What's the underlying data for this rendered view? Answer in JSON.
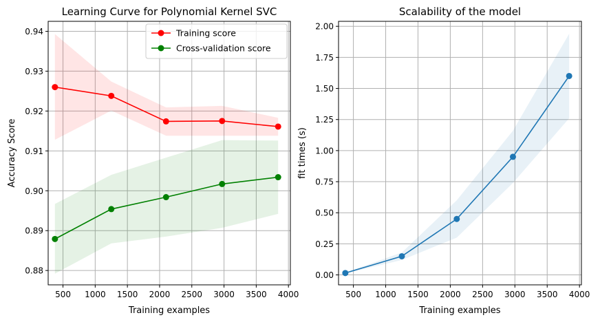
{
  "chart_data": [
    {
      "type": "line",
      "title": "Learning Curve for Polynomial Kernel SVC",
      "xlabel": "Training examples",
      "ylabel": "Accuracy Score",
      "xlim": [
        270,
        4030
      ],
      "ylim": [
        0.8764,
        0.9425
      ],
      "xticks": [
        500,
        1000,
        1500,
        2000,
        2500,
        3000,
        3500,
        4000
      ],
      "yticks": [
        0.88,
        0.89,
        0.9,
        0.91,
        0.92,
        0.93,
        0.94
      ],
      "ytick_labels": [
        "0.88",
        "0.89",
        "0.90",
        "0.91",
        "0.92",
        "0.93",
        "0.94"
      ],
      "grid": true,
      "legend": "top-right",
      "x": [
        375,
        1250,
        2100,
        2970,
        3840
      ],
      "series": [
        {
          "name": "Training score",
          "color": "#ff0000",
          "values": [
            0.926,
            0.9238,
            0.9174,
            0.9175,
            0.9161
          ],
          "band_lower": [
            0.9128,
            0.9201,
            0.9138,
            0.9138,
            0.9138
          ],
          "band_upper": [
            0.9393,
            0.9274,
            0.9209,
            0.9213,
            0.9183
          ]
        },
        {
          "name": "Cross-validation score",
          "color": "#008000",
          "values": [
            0.8879,
            0.8954,
            0.8984,
            0.9017,
            0.9034
          ],
          "band_lower": [
            0.8792,
            0.8868,
            0.8885,
            0.8907,
            0.8942
          ],
          "band_upper": [
            0.8967,
            0.904,
            0.9083,
            0.9127,
            0.9126
          ]
        }
      ]
    },
    {
      "type": "line",
      "title": "Scalability of the model",
      "xlabel": "Training examples",
      "ylabel": "fit times (s)",
      "xlim": [
        270,
        4030
      ],
      "ylim": [
        -0.08,
        2.04
      ],
      "xticks": [
        500,
        1000,
        1500,
        2000,
        2500,
        3000,
        3500,
        4000
      ],
      "yticks": [
        0.0,
        0.25,
        0.5,
        0.75,
        1.0,
        1.25,
        1.5,
        1.75,
        2.0
      ],
      "ytick_labels": [
        "0.00",
        "0.25",
        "0.50",
        "0.75",
        "1.00",
        "1.25",
        "1.50",
        "1.75",
        "2.00"
      ],
      "grid": true,
      "x": [
        375,
        1250,
        2100,
        2970,
        3840
      ],
      "series": [
        {
          "name": "",
          "color": "#1f77b4",
          "values": [
            0.015,
            0.15,
            0.45,
            0.95,
            1.6
          ],
          "band_lower": [
            0.012,
            0.12,
            0.3,
            0.74,
            1.26
          ],
          "band_upper": [
            0.018,
            0.18,
            0.6,
            1.16,
            1.94
          ]
        }
      ]
    }
  ]
}
